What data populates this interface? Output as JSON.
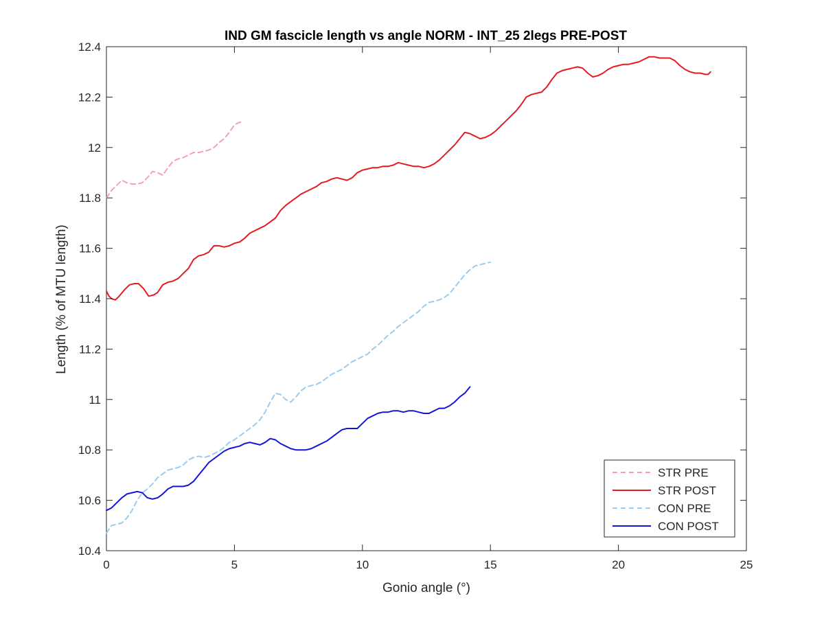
{
  "chart_data": {
    "type": "line",
    "title": "IND GM fascicle length vs angle NORM - INT_25 2legs PRE-POST",
    "xlabel": "Gonio angle (°)",
    "ylabel": "Length (% of MTU length)",
    "xlim": [
      0,
      25
    ],
    "ylim": [
      10.4,
      12.4
    ],
    "xticks": [
      0,
      5,
      10,
      15,
      20,
      25
    ],
    "xtick_labels": [
      "0",
      "5",
      "10",
      "15",
      "20",
      "25"
    ],
    "yticks": [
      10.4,
      10.6,
      10.8,
      11,
      11.2,
      11.4,
      11.6,
      11.8,
      12,
      12.2,
      12.4
    ],
    "ytick_labels": [
      "10.4",
      "10.6",
      "10.8",
      "11",
      "11.2",
      "11.4",
      "11.6",
      "11.8",
      "12",
      "12.2",
      "12.4"
    ],
    "grid": false,
    "legend_position": "bottom-right",
    "series": [
      {
        "name": "STR PRE",
        "color": "#f4a0b8",
        "dash": "dashed",
        "x": [
          0,
          0.2,
          0.4,
          0.6,
          0.8,
          1.0,
          1.2,
          1.4,
          1.6,
          1.8,
          2.0,
          2.2,
          2.4,
          2.6,
          2.8,
          3.0,
          3.2,
          3.4,
          3.6,
          3.8,
          4.0,
          4.2,
          4.4,
          4.6,
          4.8,
          5.0,
          5.2,
          5.3
        ],
        "y": [
          11.8,
          11.83,
          11.85,
          11.87,
          11.86,
          11.855,
          11.855,
          11.86,
          11.88,
          11.905,
          11.9,
          11.89,
          11.92,
          11.945,
          11.955,
          11.96,
          11.97,
          11.98,
          11.98,
          11.985,
          11.99,
          12.0,
          12.02,
          12.035,
          12.06,
          12.09,
          12.1,
          12.1
        ]
      },
      {
        "name": "STR POST",
        "color": "#e8191e",
        "dash": "solid",
        "x": [
          0,
          0.1,
          0.2,
          0.35,
          0.5,
          0.7,
          0.9,
          1.1,
          1.25,
          1.45,
          1.65,
          1.85,
          2.0,
          2.2,
          2.4,
          2.6,
          2.8,
          3.0,
          3.2,
          3.4,
          3.6,
          3.8,
          4.0,
          4.2,
          4.4,
          4.6,
          4.8,
          5.0,
          5.2,
          5.4,
          5.6,
          5.8,
          6.0,
          6.2,
          6.4,
          6.6,
          6.8,
          7.0,
          7.2,
          7.4,
          7.6,
          7.8,
          8.0,
          8.2,
          8.4,
          8.6,
          8.8,
          9.0,
          9.2,
          9.4,
          9.6,
          9.8,
          10.0,
          10.2,
          10.4,
          10.6,
          10.8,
          11.0,
          11.2,
          11.4,
          11.6,
          11.8,
          12.0,
          12.2,
          12.4,
          12.6,
          12.8,
          13.0,
          13.2,
          13.4,
          13.6,
          13.8,
          14.0,
          14.2,
          14.4,
          14.6,
          14.8,
          15.0,
          15.2,
          15.4,
          15.6,
          15.8,
          16.0,
          16.2,
          16.4,
          16.6,
          16.8,
          17.0,
          17.2,
          17.4,
          17.6,
          17.8,
          18.0,
          18.2,
          18.4,
          18.6,
          18.8,
          19.0,
          19.2,
          19.4,
          19.6,
          19.8,
          20.0,
          20.2,
          20.4,
          20.6,
          20.8,
          21.0,
          21.2,
          21.4,
          21.6,
          21.8,
          22.0,
          22.2,
          22.4,
          22.6,
          22.8,
          23.0,
          23.2,
          23.4,
          23.5,
          23.6
        ],
        "y": [
          11.43,
          11.41,
          11.4,
          11.395,
          11.41,
          11.435,
          11.455,
          11.46,
          11.46,
          11.44,
          11.41,
          11.415,
          11.425,
          11.455,
          11.465,
          11.47,
          11.48,
          11.5,
          11.52,
          11.555,
          11.57,
          11.575,
          11.585,
          11.61,
          11.61,
          11.605,
          11.61,
          11.62,
          11.625,
          11.64,
          11.66,
          11.67,
          11.68,
          11.69,
          11.705,
          11.72,
          11.75,
          11.77,
          11.785,
          11.8,
          11.815,
          11.825,
          11.835,
          11.845,
          11.86,
          11.865,
          11.875,
          11.88,
          11.875,
          11.87,
          11.88,
          11.9,
          11.91,
          11.915,
          11.92,
          11.92,
          11.925,
          11.925,
          11.93,
          11.94,
          11.935,
          11.93,
          11.925,
          11.925,
          11.92,
          11.925,
          11.935,
          11.95,
          11.97,
          11.99,
          12.01,
          12.035,
          12.06,
          12.055,
          12.045,
          12.035,
          12.04,
          12.05,
          12.065,
          12.085,
          12.105,
          12.125,
          12.145,
          12.17,
          12.2,
          12.21,
          12.215,
          12.22,
          12.24,
          12.27,
          12.295,
          12.305,
          12.31,
          12.315,
          12.32,
          12.315,
          12.295,
          12.28,
          12.285,
          12.295,
          12.31,
          12.32,
          12.325,
          12.33,
          12.33,
          12.335,
          12.34,
          12.35,
          12.36,
          12.36,
          12.355,
          12.355,
          12.355,
          12.345,
          12.325,
          12.31,
          12.3,
          12.295,
          12.295,
          12.29,
          12.29,
          12.3
        ]
      },
      {
        "name": "CON PRE",
        "color": "#99ccf0",
        "dash": "dashed",
        "x": [
          0,
          0.2,
          0.4,
          0.6,
          0.8,
          1.0,
          1.2,
          1.4,
          1.6,
          1.8,
          2.0,
          2.2,
          2.4,
          2.6,
          2.8,
          3.0,
          3.2,
          3.4,
          3.6,
          3.8,
          4.0,
          4.2,
          4.4,
          4.6,
          4.8,
          5.0,
          5.2,
          5.4,
          5.6,
          5.8,
          6.0,
          6.2,
          6.4,
          6.6,
          6.8,
          7.0,
          7.2,
          7.4,
          7.6,
          7.8,
          8.0,
          8.2,
          8.4,
          8.6,
          8.8,
          9.0,
          9.2,
          9.4,
          9.6,
          9.8,
          10.0,
          10.2,
          10.4,
          10.6,
          10.8,
          11.0,
          11.2,
          11.4,
          11.6,
          11.8,
          12.0,
          12.2,
          12.4,
          12.6,
          12.8,
          13.0,
          13.2,
          13.4,
          13.6,
          13.8,
          14.0,
          14.2,
          14.4,
          14.6,
          14.8,
          15.0
        ],
        "y": [
          10.47,
          10.5,
          10.505,
          10.51,
          10.53,
          10.56,
          10.6,
          10.63,
          10.645,
          10.665,
          10.69,
          10.705,
          10.72,
          10.725,
          10.73,
          10.74,
          10.76,
          10.77,
          10.775,
          10.77,
          10.775,
          10.785,
          10.795,
          10.81,
          10.83,
          10.84,
          10.855,
          10.87,
          10.885,
          10.9,
          10.92,
          10.95,
          10.99,
          11.025,
          11.02,
          11.0,
          10.99,
          11.01,
          11.035,
          11.05,
          11.055,
          11.06,
          11.07,
          11.085,
          11.1,
          11.11,
          11.12,
          11.135,
          11.15,
          11.16,
          11.17,
          11.18,
          11.2,
          11.215,
          11.235,
          11.255,
          11.27,
          11.29,
          11.305,
          11.32,
          11.335,
          11.35,
          11.37,
          11.385,
          11.39,
          11.395,
          11.405,
          11.42,
          11.445,
          11.47,
          11.495,
          11.515,
          11.53,
          11.535,
          11.54,
          11.545
        ]
      },
      {
        "name": "CON POST",
        "color": "#1414d8",
        "dash": "solid",
        "x": [
          0,
          0.2,
          0.4,
          0.6,
          0.8,
          1.0,
          1.2,
          1.4,
          1.6,
          1.8,
          2.0,
          2.2,
          2.4,
          2.6,
          2.8,
          3.0,
          3.2,
          3.4,
          3.6,
          3.8,
          4.0,
          4.2,
          4.4,
          4.6,
          4.8,
          5.0,
          5.2,
          5.4,
          5.6,
          5.8,
          6.0,
          6.2,
          6.4,
          6.6,
          6.8,
          7.0,
          7.2,
          7.4,
          7.6,
          7.8,
          8.0,
          8.2,
          8.4,
          8.6,
          8.8,
          9.0,
          9.2,
          9.4,
          9.6,
          9.8,
          10.0,
          10.2,
          10.4,
          10.6,
          10.8,
          11.0,
          11.2,
          11.4,
          11.6,
          11.8,
          12.0,
          12.2,
          12.4,
          12.6,
          12.8,
          13.0,
          13.2,
          13.4,
          13.6,
          13.8,
          14.0,
          14.2
        ],
        "y": [
          10.56,
          10.57,
          10.59,
          10.61,
          10.625,
          10.63,
          10.635,
          10.63,
          10.61,
          10.605,
          10.61,
          10.625,
          10.645,
          10.655,
          10.655,
          10.655,
          10.66,
          10.675,
          10.7,
          10.725,
          10.75,
          10.765,
          10.78,
          10.795,
          10.805,
          10.81,
          10.815,
          10.825,
          10.83,
          10.825,
          10.82,
          10.83,
          10.845,
          10.84,
          10.825,
          10.815,
          10.805,
          10.8,
          10.8,
          10.8,
          10.805,
          10.815,
          10.825,
          10.835,
          10.85,
          10.865,
          10.88,
          10.885,
          10.885,
          10.885,
          10.905,
          10.925,
          10.935,
          10.945,
          10.95,
          10.95,
          10.955,
          10.955,
          10.95,
          10.955,
          10.955,
          10.95,
          10.945,
          10.945,
          10.955,
          10.965,
          10.965,
          10.975,
          10.99,
          11.01,
          11.025,
          11.05
        ]
      }
    ]
  }
}
